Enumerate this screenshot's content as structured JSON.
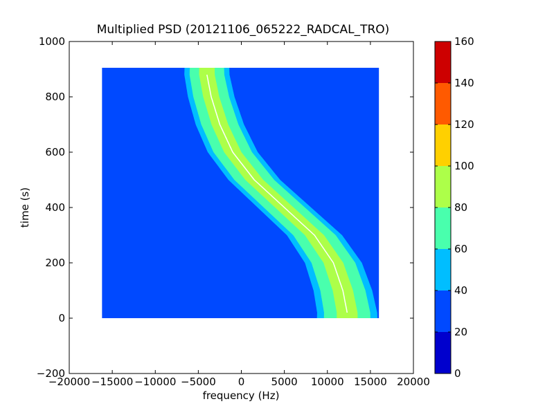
{
  "chart_data": {
    "type": "heatmap",
    "title": "Multiplied PSD (20121106_065222_RADCAL_TRO)",
    "xlabel": "frequency (Hz)",
    "ylabel": "time (s)",
    "xlim": [
      -20000,
      20000
    ],
    "ylim": [
      -200,
      1000
    ],
    "xticks": [
      -20000,
      -15000,
      -10000,
      -5000,
      0,
      5000,
      10000,
      15000,
      20000
    ],
    "xtick_labels": [
      "−20000",
      "−15000",
      "−10000",
      "−5000",
      "0",
      "5000",
      "10000",
      "15000",
      "20000"
    ],
    "yticks": [
      -200,
      0,
      200,
      400,
      600,
      800,
      1000
    ],
    "ytick_labels": [
      "−200",
      "0",
      "200",
      "400",
      "600",
      "800",
      "1000"
    ],
    "grid": false,
    "data_extent": {
      "x": [
        -16200,
        16000
      ],
      "y": [
        0,
        905
      ]
    },
    "background_level": 30,
    "track": {
      "description_points": [
        {
          "t": 880,
          "f": -4000
        },
        {
          "t": 800,
          "f": -3500
        },
        {
          "t": 700,
          "f": -2500
        },
        {
          "t": 600,
          "f": -1000
        },
        {
          "t": 500,
          "f": 1500
        },
        {
          "t": 400,
          "f": 5000
        },
        {
          "t": 300,
          "f": 8500
        },
        {
          "t": 200,
          "f": 10700
        },
        {
          "t": 100,
          "f": 11800
        },
        {
          "t": 20,
          "f": 12300
        }
      ]
    },
    "colorbar": {
      "range": [
        0,
        160
      ],
      "levels": [
        0,
        20,
        40,
        60,
        80,
        100,
        120,
        140,
        160
      ],
      "tick_labels": [
        "0",
        "20",
        "40",
        "60",
        "80",
        "100",
        "120",
        "140",
        "160"
      ],
      "colors": [
        "#0000cd",
        "#0049ff",
        "#00beff",
        "#49ffad",
        "#adff49",
        "#ffd000",
        "#ff5a00",
        "#cd0000"
      ]
    }
  }
}
